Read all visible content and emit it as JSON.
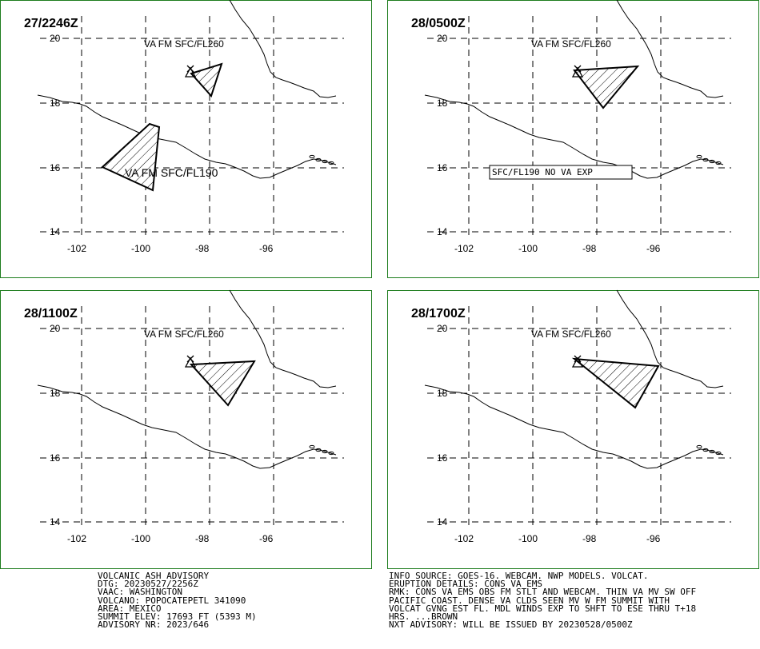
{
  "map": {
    "lat_ticks": [
      "20",
      "18",
      "16",
      "14"
    ],
    "lon_ticks": [
      "-102",
      "-100",
      "-98",
      "-96"
    ],
    "panels": [
      {
        "title": "27/2246Z",
        "labels": [
          "VA FM SFC/FL260",
          "VA FM SFC/FL190"
        ]
      },
      {
        "title": "28/0500Z",
        "labels": [
          "VA FM SFC/FL260",
          "SFC/FL190 NO VA EXP"
        ]
      },
      {
        "title": "28/1100Z",
        "labels": [
          "VA FM SFC/FL260"
        ]
      },
      {
        "title": "28/1700Z",
        "labels": [
          "VA FM SFC/FL260"
        ]
      }
    ],
    "colors": {
      "frame": "#1e7d1e",
      "lines": "#000000",
      "background": "#ffffff"
    }
  },
  "advisory": {
    "left": [
      "VOLCANIC ASH ADVISORY",
      "DTG: 20230527/2256Z",
      "VAAC: WASHINGTON",
      "VOLCANO: POPOCATEPETL 341090",
      "AREA: MEXICO",
      "SUMMIT ELEV: 17693 FT (5393 M)",
      "ADVISORY NR: 2023/646"
    ],
    "right": [
      "INFO SOURCE: GOES-16. WEBCAM. NWP MODELS. VOLCAT.",
      "ERUPTION DETAILS: CONS VA EMS",
      "RMK: CONS VA EMS OBS FM STLT AND WEBCAM. THIN VA MV SW OFF",
      "PACIFIC COAST. DENSE VA CLDS SEEN MV W FM SUMMIT WITH",
      "VOLCAT GVNG EST FL. MDL WINDS EXP TO SHFT TO ESE THRU T+18",
      "HRS. ...BROWN",
      "NXT ADVISORY: WILL BE ISSUED BY 20230528/0500Z"
    ]
  }
}
